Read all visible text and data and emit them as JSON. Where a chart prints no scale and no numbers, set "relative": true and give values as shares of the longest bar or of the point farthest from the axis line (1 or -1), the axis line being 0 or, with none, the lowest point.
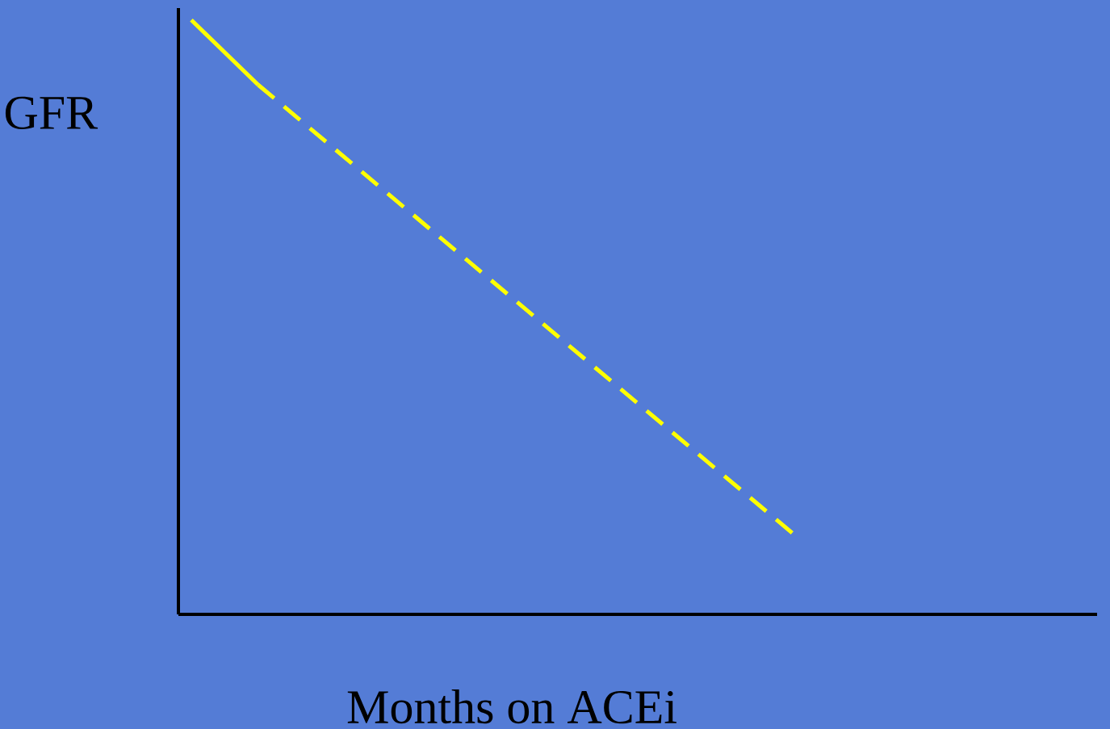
{
  "chart_data": {
    "type": "line",
    "xlabel": "Months on ACEi",
    "ylabel": "GFR",
    "relative": true,
    "marker": "none",
    "categories": [
      null,
      null,
      null,
      null,
      null,
      null,
      null,
      null,
      null,
      null
    ],
    "series": [
      {
        "color": "#ffff00",
        "values": [
          1,
          0.891,
          null,
          null,
          null,
          null,
          null,
          null,
          null,
          null
        ],
        "line_style": "solid"
      },
      {
        "color": "#ffff00",
        "values": [
          null,
          0.891,
          null,
          null,
          null,
          null,
          null,
          null,
          null,
          0.137
        ],
        "line_style": "dashed"
      }
    ]
  }
}
